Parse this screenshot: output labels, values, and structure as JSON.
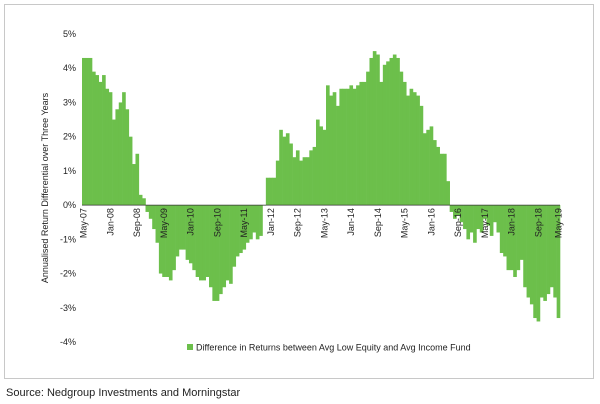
{
  "source_text": "Source: Nedgroup Investments and Morningstar",
  "chart_data": {
    "type": "bar",
    "title": "",
    "xlabel": "",
    "ylabel": "Annualised Return Differential over Three Years",
    "ylim": [
      -4,
      5
    ],
    "y_ticks": [
      5,
      4,
      3,
      2,
      1,
      0,
      -1,
      -2,
      -3,
      -4
    ],
    "y_tick_labels": [
      "5%",
      "4%",
      "3%",
      "2%",
      "1%",
      "0%",
      "-1%",
      "-2%",
      "-3%",
      "-4%"
    ],
    "x_ticks": [
      "May-07",
      "Jan-08",
      "Sep-08",
      "May-09",
      "Jan-10",
      "Sep-10",
      "May-11",
      "Jan-12",
      "Sep-12",
      "May-13",
      "Jan-14",
      "Sep-14",
      "May-15",
      "Jan-16",
      "Sep-16",
      "May-17",
      "Jan-18",
      "Sep-18",
      "May-19"
    ],
    "grid": false,
    "legend_position": "bottom",
    "color": "#6cbf4b",
    "series": [
      {
        "name": "Difference in Returns between Avg Low Equity and Avg Income Fund",
        "start": "May-07",
        "frequency": "monthly",
        "values": [
          4.3,
          4.3,
          4.3,
          3.9,
          3.8,
          3.6,
          3.8,
          3.4,
          3.3,
          2.5,
          2.8,
          3.0,
          3.3,
          2.8,
          2.0,
          1.2,
          1.5,
          0.3,
          0.2,
          -0.2,
          -0.4,
          -0.7,
          -1.1,
          -2.0,
          -2.1,
          -2.1,
          -2.2,
          -1.9,
          -1.5,
          -1.3,
          -1.3,
          -1.6,
          -1.7,
          -1.9,
          -2.1,
          -2.2,
          -2.2,
          -2.1,
          -2.4,
          -2.8,
          -2.8,
          -2.6,
          -2.4,
          -2.2,
          -2.3,
          -1.8,
          -1.5,
          -1.4,
          -1.3,
          -1.1,
          -1.0,
          -0.8,
          -1.0,
          -0.9,
          0.0,
          0.8,
          0.8,
          0.8,
          1.3,
          2.2,
          2.0,
          2.1,
          1.8,
          1.4,
          1.6,
          1.3,
          1.4,
          1.4,
          1.6,
          1.7,
          2.5,
          2.3,
          2.2,
          3.5,
          3.2,
          3.3,
          2.9,
          3.4,
          3.4,
          3.4,
          3.5,
          3.4,
          3.5,
          3.6,
          3.6,
          3.9,
          4.3,
          4.5,
          4.4,
          3.6,
          4.1,
          4.2,
          4.3,
          4.4,
          4.3,
          3.9,
          3.6,
          3.2,
          3.4,
          3.3,
          3.2,
          2.9,
          2.1,
          2.2,
          2.3,
          1.9,
          1.7,
          1.5,
          1.5,
          0.7,
          -0.2,
          -0.4,
          -0.3,
          -0.5,
          -0.7,
          -1.0,
          -0.8,
          -1.1,
          -0.7,
          -0.8,
          -0.4,
          -0.6,
          -0.9,
          -0.5,
          -0.8,
          -1.4,
          -1.5,
          -1.9,
          -1.9,
          -2.1,
          -1.9,
          -1.6,
          -2.4,
          -2.7,
          -2.9,
          -3.3,
          -3.4,
          -2.7,
          -2.8,
          -2.6,
          -2.4,
          -2.7,
          -3.3
        ]
      }
    ]
  }
}
